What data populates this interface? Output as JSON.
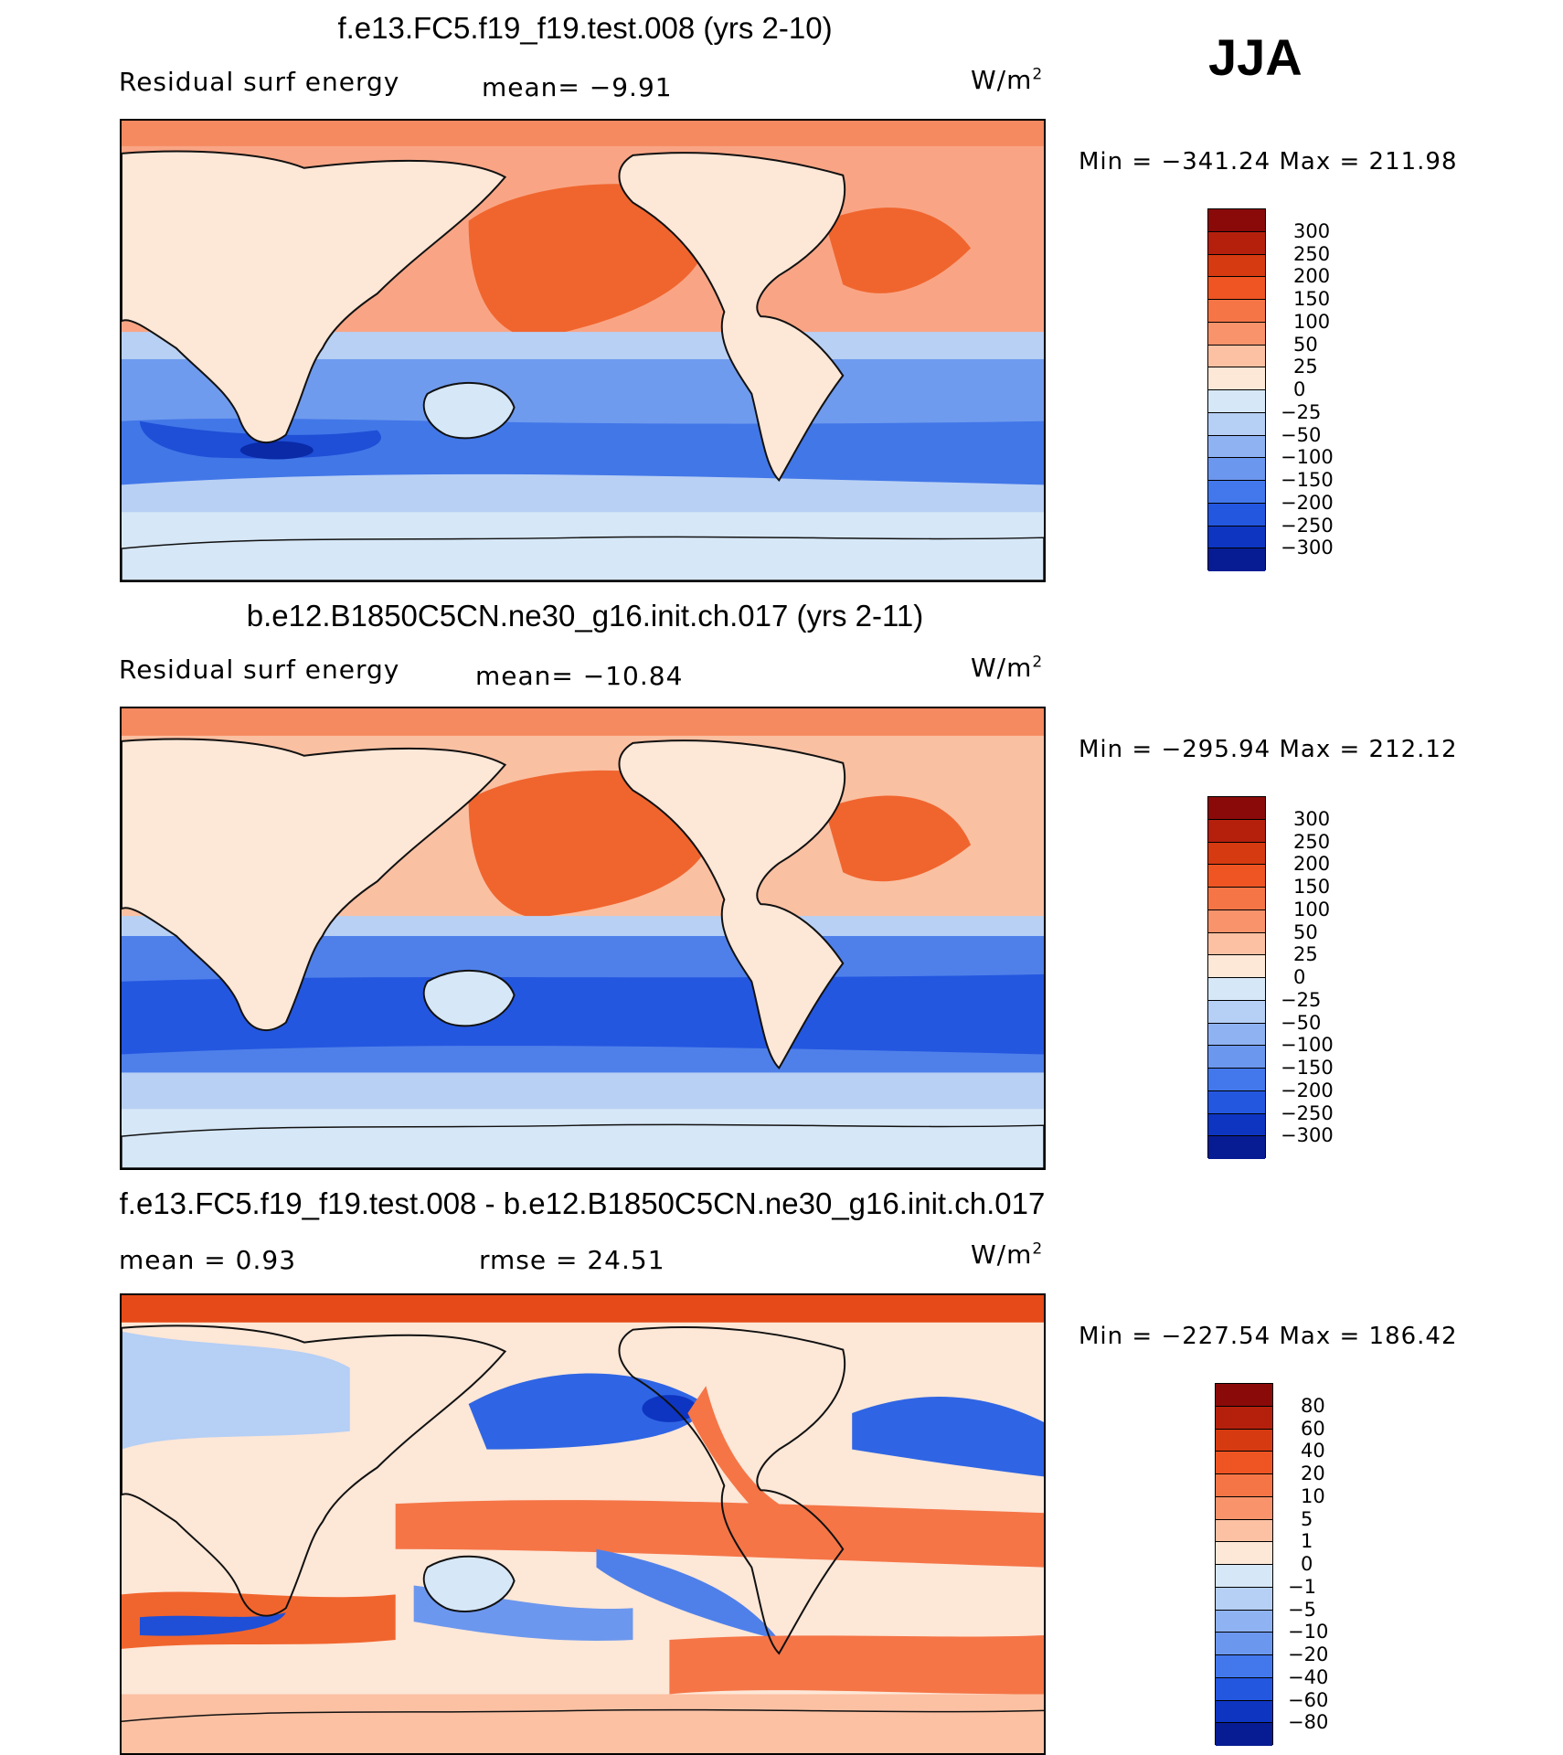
{
  "season": "JJA",
  "panels": [
    {
      "title": "f.e13.FC5.f19_f19.test.008 (yrs 2-10)",
      "left_label": "Residual surf energy",
      "mid_label": "mean=   −9.91",
      "units": "W/m",
      "units_sup": "2",
      "minmax": "Min  =  −341.24  Max  =  211.98",
      "colorbar": {
        "labels": [
          "300",
          "250",
          "200",
          "150",
          "100",
          "50",
          "25",
          "0",
          "−25",
          "−50",
          "−100",
          "−150",
          "−200",
          "−250",
          "−300"
        ],
        "colors": [
          "#8a0a0a",
          "#b5200d",
          "#d63a10",
          "#ee5523",
          "#f57547",
          "#f9936b",
          "#fcc1a3",
          "#fde7d7",
          "#d6e7f7",
          "#b5cff5",
          "#8fb2f3",
          "#6c97ee",
          "#4278ec",
          "#2457e0",
          "#0e35c1",
          "#071c92"
        ]
      }
    },
    {
      "title": "b.e12.B1850C5CN.ne30_g16.init.ch.017 (yrs 2-11)",
      "left_label": "Residual surf energy",
      "mid_label": "mean= −10.84",
      "units": "W/m",
      "units_sup": "2",
      "minmax": "Min  =  −295.94  Max  =  212.12",
      "colorbar": {
        "labels": [
          "300",
          "250",
          "200",
          "150",
          "100",
          "50",
          "25",
          "0",
          "−25",
          "−50",
          "−100",
          "−150",
          "−200",
          "−250",
          "−300"
        ],
        "colors": [
          "#8a0a0a",
          "#b5200d",
          "#d63a10",
          "#ee5523",
          "#f57547",
          "#f9936b",
          "#fcc1a3",
          "#fde7d7",
          "#d6e7f7",
          "#b5cff5",
          "#8fb2f3",
          "#6c97ee",
          "#4278ec",
          "#2457e0",
          "#0e35c1",
          "#071c92"
        ]
      }
    },
    {
      "title": "f.e13.FC5.f19_f19.test.008 - b.e12.B1850C5CN.ne30_g16.init.ch.017",
      "left_label": "mean =    0.93",
      "mid_label": "rmse =   24.51",
      "units": "W/m",
      "units_sup": "2",
      "minmax": "Min  =  −227.54  Max  =  186.42",
      "colorbar": {
        "labels": [
          "80",
          "60",
          "40",
          "20",
          "10",
          "5",
          "1",
          "0",
          "−1",
          "−5",
          "−10",
          "−20",
          "−40",
          "−60",
          "−80"
        ],
        "colors": [
          "#8a0a0a",
          "#b5200d",
          "#d63a10",
          "#ee5523",
          "#f57547",
          "#f9936b",
          "#fcc1a3",
          "#fde7d7",
          "#d6e7f7",
          "#b5cff5",
          "#8fb2f3",
          "#6c97ee",
          "#4278ec",
          "#2457e0",
          "#0e35c1",
          "#071c92"
        ]
      }
    }
  ]
}
